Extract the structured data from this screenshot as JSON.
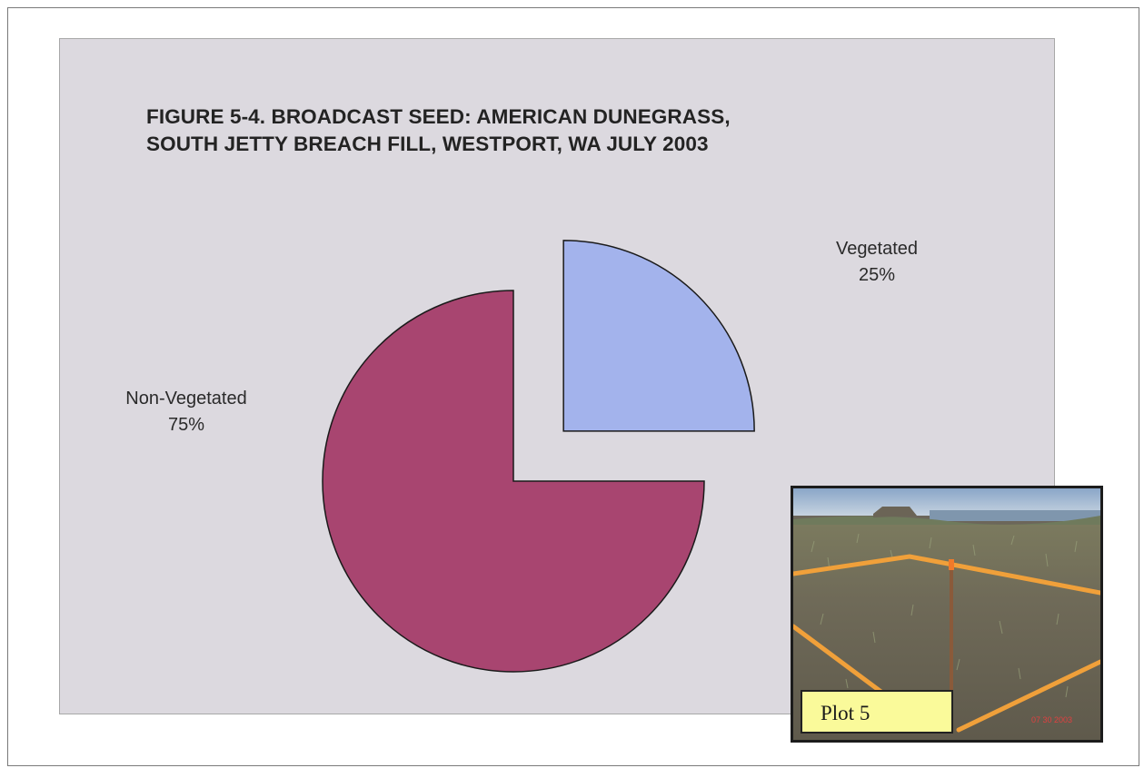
{
  "chart_data": {
    "type": "pie",
    "title": "FIGURE 5-4. BROADCAST SEED: AMERICAN DUNEGRASS, SOUTH JETTY BREACH FILL, WESTPORT, WA JULY 2003",
    "title_lines": [
      "FIGURE 5-4. BROADCAST SEED: AMERICAN DUNEGRASS,",
      "SOUTH JETTY BREACH FILL, WESTPORT, WA JULY 2003"
    ],
    "slices": [
      {
        "label": "Vegetated",
        "value": 25,
        "value_label": "25%",
        "color": "#a3b3ec",
        "exploded": true
      },
      {
        "label": "Non-Vegetated",
        "value": 75,
        "value_label": "75%",
        "color": "#a84570",
        "exploded": false
      }
    ],
    "legend": "none",
    "start_angle": "12 o'clock, clockwise"
  },
  "inset_photo": {
    "caption": "Plot 5",
    "stamp": "07 30 2003"
  },
  "colors": {
    "plot_background": "#dcd9df",
    "slice_outline": "#1a1a1a",
    "plot_marker": "#f0a03a"
  }
}
